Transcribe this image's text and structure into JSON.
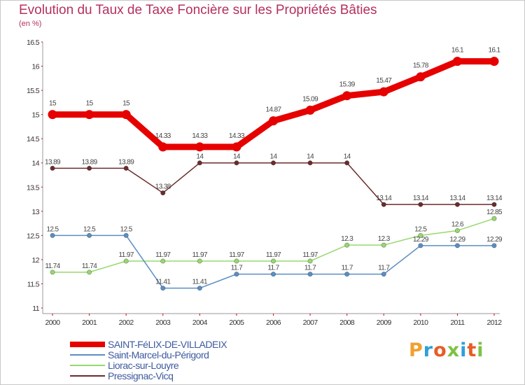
{
  "title": "Evolution du Taux de Taxe Foncière sur les Propriétés Bâties",
  "unit_label": "(en %)",
  "brand": {
    "letters": [
      "P",
      "r",
      "o",
      "x",
      "i",
      "t",
      "i"
    ],
    "colors": [
      "#f0a030",
      "#2f9fd8",
      "#e85c25",
      "#7cc243",
      "#2f9fd8",
      "#e85c25",
      "#7cc243"
    ]
  },
  "chart_data": {
    "type": "line",
    "title": "Evolution du Taux de Taxe Foncière sur les Propriétés Bâties",
    "ylabel": "(en %)",
    "xlabel": "",
    "categories": [
      "2000",
      "2001",
      "2002",
      "2003",
      "2004",
      "2005",
      "2006",
      "2007",
      "2008",
      "2009",
      "2010",
      "2011",
      "2012"
    ],
    "ylim": [
      11,
      16.5
    ],
    "yticks": [
      "11",
      "11.5",
      "12",
      "12.5",
      "13",
      "13.5",
      "14",
      "14.5",
      "15",
      "15.5",
      "16",
      "16.5"
    ],
    "grid": false,
    "legend_position": "bottom-left",
    "series": [
      {
        "name": "SAINT-FéLIX-DE-VILLADEIX",
        "color": "#e60000",
        "values": [
          15,
          15,
          15,
          14.33,
          14.33,
          14.33,
          14.87,
          15.09,
          15.39,
          15.47,
          15.78,
          16.1,
          16.1
        ],
        "labels": [
          "15",
          "15",
          "15",
          "14.33",
          "14.33",
          "14.33",
          "14.87",
          "15.09",
          "15.39",
          "15.47",
          "15.78",
          "16.1",
          "16.1"
        ]
      },
      {
        "name": "Saint-Marcel-du-Périgord",
        "color": "#5b8ec4",
        "values": [
          12.5,
          12.5,
          12.5,
          11.41,
          11.41,
          11.7,
          11.7,
          11.7,
          11.7,
          11.7,
          12.29,
          12.29,
          12.29
        ],
        "labels": [
          "12.5",
          "12.5",
          "12.5",
          "11.41",
          "11.41",
          "11.7",
          "11.7",
          "11.7",
          "11.7",
          "11.7",
          "12.29",
          "12.29",
          "12.29"
        ]
      },
      {
        "name": "Liorac-sur-Louyre",
        "color": "#96d86e",
        "values": [
          11.74,
          11.74,
          11.97,
          11.97,
          11.97,
          11.97,
          11.97,
          11.97,
          12.3,
          12.3,
          12.5,
          12.6,
          12.85
        ],
        "labels": [
          "11.74",
          "11.74",
          "11.97",
          "11.97",
          "11.97",
          "11.97",
          "11.97",
          "11.97",
          "12.3",
          "12.3",
          "12.5",
          "12.6",
          "12.85"
        ]
      },
      {
        "name": "Pressignac-Vicq",
        "color": "#6b2c2c",
        "values": [
          13.89,
          13.89,
          13.89,
          13.38,
          14,
          14,
          14,
          14,
          14,
          13.14,
          13.14,
          13.14,
          13.14
        ],
        "labels": [
          "13.89",
          "13.89",
          "13.89",
          "13.38",
          "14",
          "14",
          "14",
          "14",
          "14",
          "13.14",
          "13.14",
          "13.14",
          "13.14"
        ]
      }
    ]
  }
}
